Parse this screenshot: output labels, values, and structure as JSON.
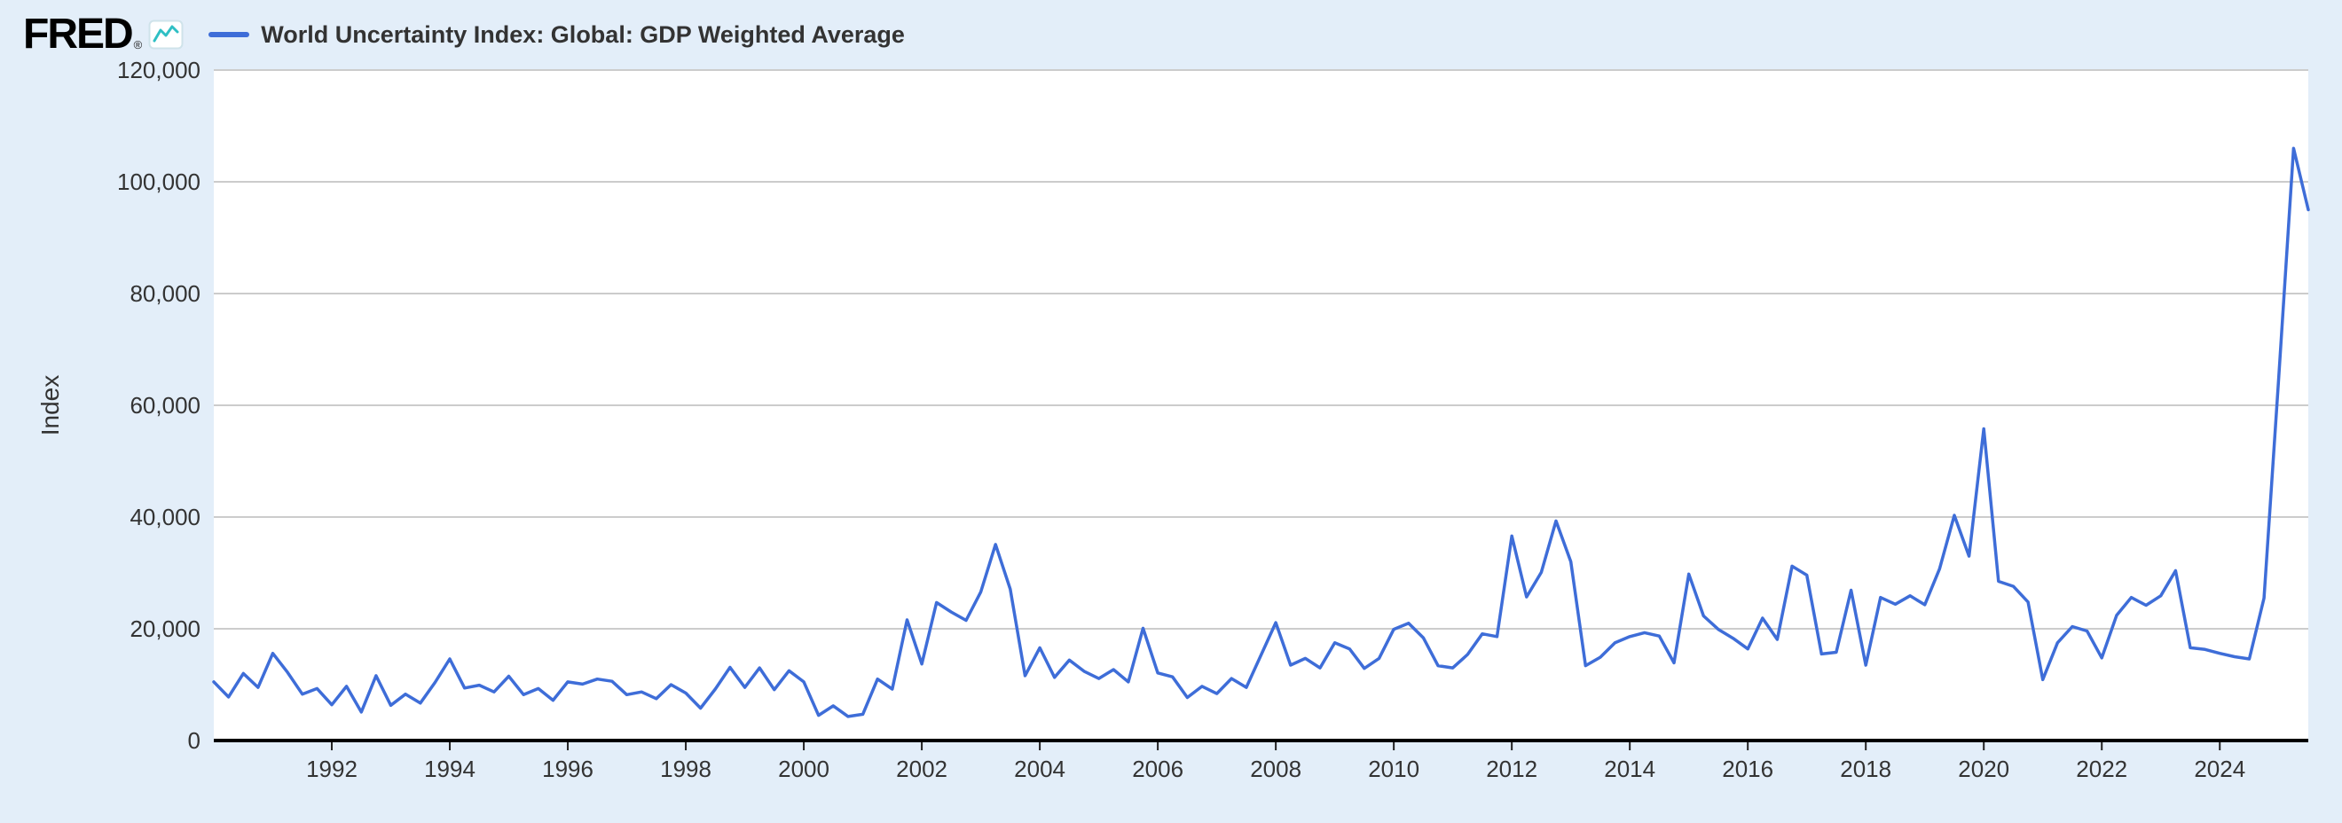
{
  "header": {
    "logo_text": "FRED",
    "registered_mark": "®",
    "logo_icon": "sparkline-chart-icon"
  },
  "legend": {
    "series_label": "World Uncertainty Index: Global: GDP Weighted Average"
  },
  "colors": {
    "page_background": "#e3eef9",
    "plot_background": "#ffffff",
    "gridline": "#cccccc",
    "axis": "#000000",
    "tick_text": "#333333",
    "series_line": "#3e6dd8",
    "logo_icon_teal": "#2fbfc4"
  },
  "chart_data": {
    "type": "line",
    "title": "World Uncertainty Index: Global: GDP Weighted Average",
    "ylabel": "Index",
    "xlabel": "",
    "ylim": [
      0,
      120000
    ],
    "yticks": [
      0,
      20000,
      40000,
      60000,
      80000,
      100000,
      120000
    ],
    "xticks": [
      1992,
      1994,
      1996,
      1998,
      2000,
      2002,
      2004,
      2006,
      2008,
      2010,
      2012,
      2014,
      2016,
      2018,
      2020,
      2022,
      2024
    ],
    "frequency": "quarterly",
    "start": "1990-Q1",
    "end": "2025-Q3",
    "start_year": 1990,
    "grid": true,
    "legend_position": "top-left",
    "series": [
      {
        "name": "World Uncertainty Index: Global: GDP Weighted Average",
        "color": "#3e6dd8",
        "values": [
          10500,
          7800,
          12000,
          9500,
          15600,
          12200,
          8300,
          9300,
          6400,
          9700,
          5100,
          11600,
          6300,
          8300,
          6700,
          10400,
          14600,
          9400,
          9900,
          8700,
          11500,
          8200,
          9300,
          7200,
          10500,
          10100,
          11000,
          10600,
          8200,
          8700,
          7500,
          10000,
          8500,
          5800,
          9200,
          13100,
          9500,
          13000,
          9100,
          12500,
          10500,
          4500,
          6200,
          4300,
          4700,
          11000,
          9200,
          21600,
          13700,
          24700,
          23000,
          21500,
          26600,
          35100,
          27100,
          11600,
          16600,
          11300,
          14400,
          12400,
          11100,
          12700,
          10500,
          20100,
          12100,
          11400,
          7700,
          9700,
          8400,
          11100,
          9500,
          15300,
          21100,
          13500,
          14700,
          13000,
          17500,
          16400,
          12900,
          14700,
          19900,
          21000,
          18400,
          13400,
          13000,
          15400,
          19100,
          18600,
          36600,
          25700,
          30100,
          39300,
          32000,
          13400,
          14900,
          17500,
          18600,
          19300,
          18700,
          13900,
          29800,
          22300,
          19900,
          18300,
          16400,
          21900,
          18100,
          31200,
          29600,
          15500,
          15800,
          26900,
          13500,
          25600,
          24400,
          25900,
          24300,
          30700,
          40300,
          33000,
          55800,
          28500,
          27600,
          24800,
          10900,
          17500,
          20400,
          19600,
          14800,
          22400,
          25600,
          24200,
          25900,
          30400,
          16600,
          16300,
          15600,
          15000,
          14600,
          25500,
          65000,
          106000,
          95000
        ]
      }
    ]
  }
}
